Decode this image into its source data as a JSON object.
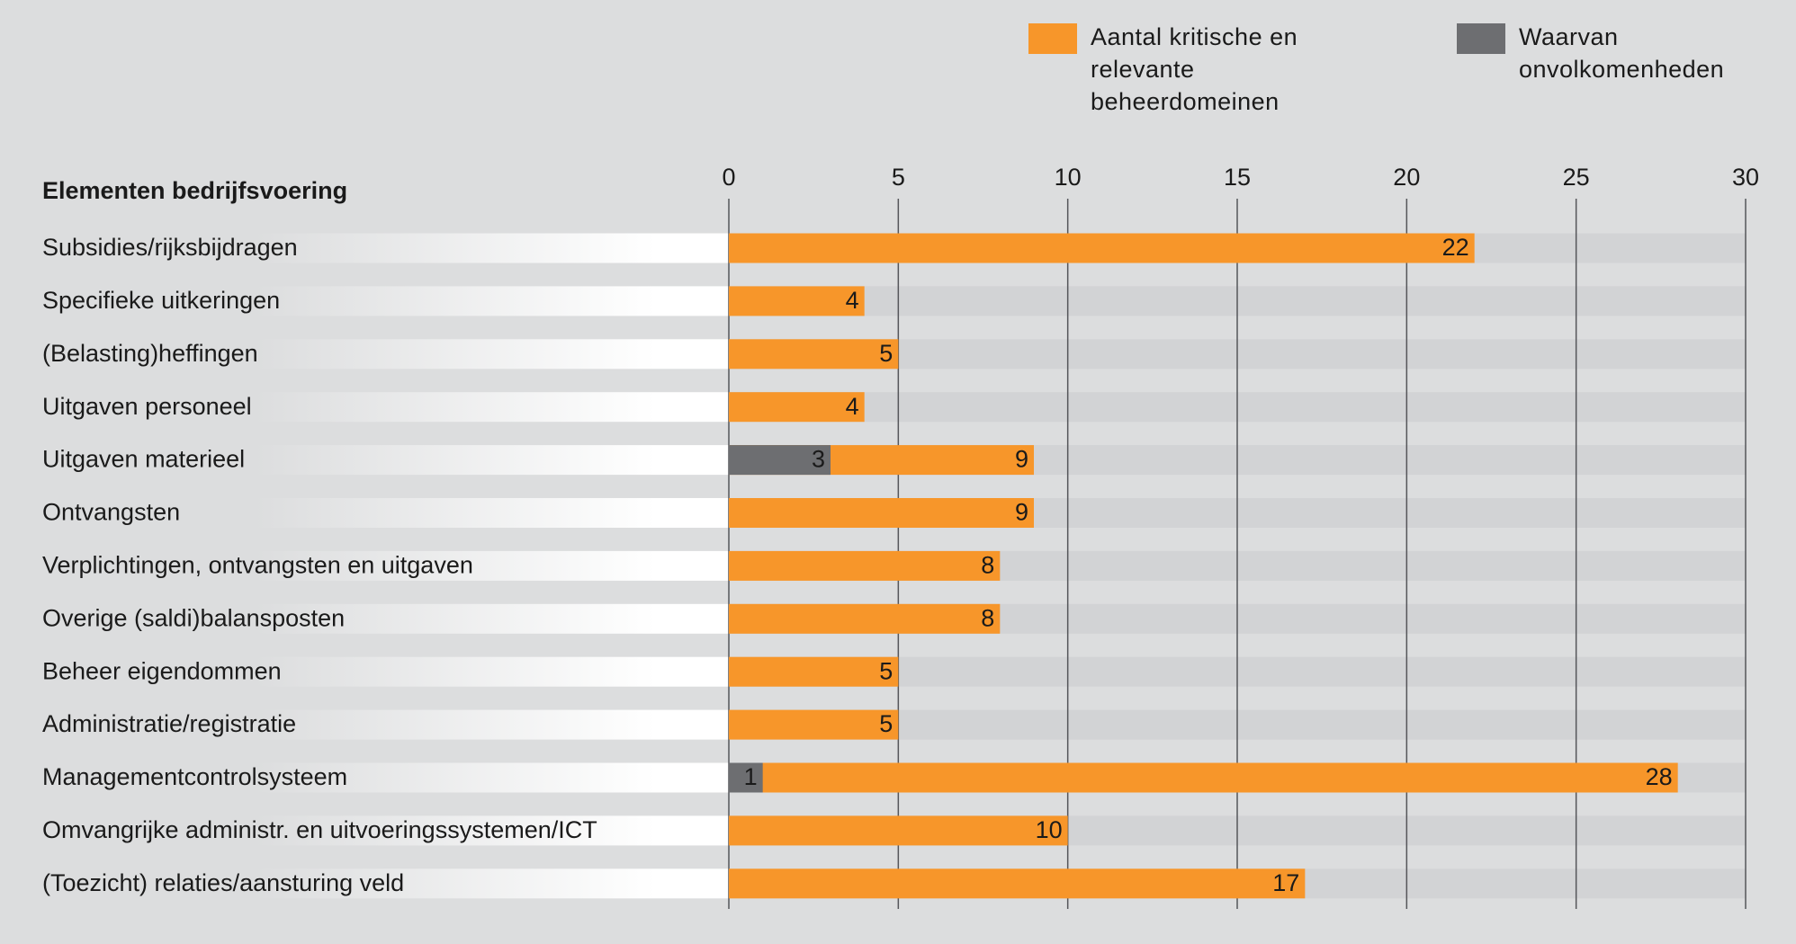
{
  "chart_data": {
    "type": "bar",
    "orientation": "horizontal",
    "overlap": true,
    "category_header": "Elementen bedrijfsvoering",
    "categories": [
      "Subsidies/rijksbijdragen",
      "Specifieke uitkeringen",
      "(Belasting)heffingen",
      "Uitgaven personeel",
      "Uitgaven materieel",
      "Ontvangsten",
      "Verplichtingen, ontvangsten en uitgaven",
      "Overige (saldi)balansposten",
      "Beheer eigendommen",
      "Administratie/registratie",
      "Managementcontrolsysteem",
      "Omvangrijke administr. en uitvoeringssystemen/ICT",
      "(Toezicht) relaties/aansturing veld"
    ],
    "series": [
      {
        "name": "Aantal kritische en relevante beheerdomeinen",
        "color": "#f7962a",
        "values": [
          22,
          4,
          5,
          4,
          9,
          9,
          8,
          8,
          5,
          5,
          28,
          10,
          17
        ]
      },
      {
        "name": "Waarvan onvolkomenheden",
        "color": "#6d6e71",
        "values": [
          null,
          null,
          null,
          null,
          3,
          null,
          null,
          null,
          null,
          null,
          1,
          null,
          null
        ]
      }
    ],
    "xlim": [
      0,
      30
    ],
    "xticks": [
      0,
      5,
      10,
      15,
      20,
      25,
      30
    ],
    "grid": true
  }
}
